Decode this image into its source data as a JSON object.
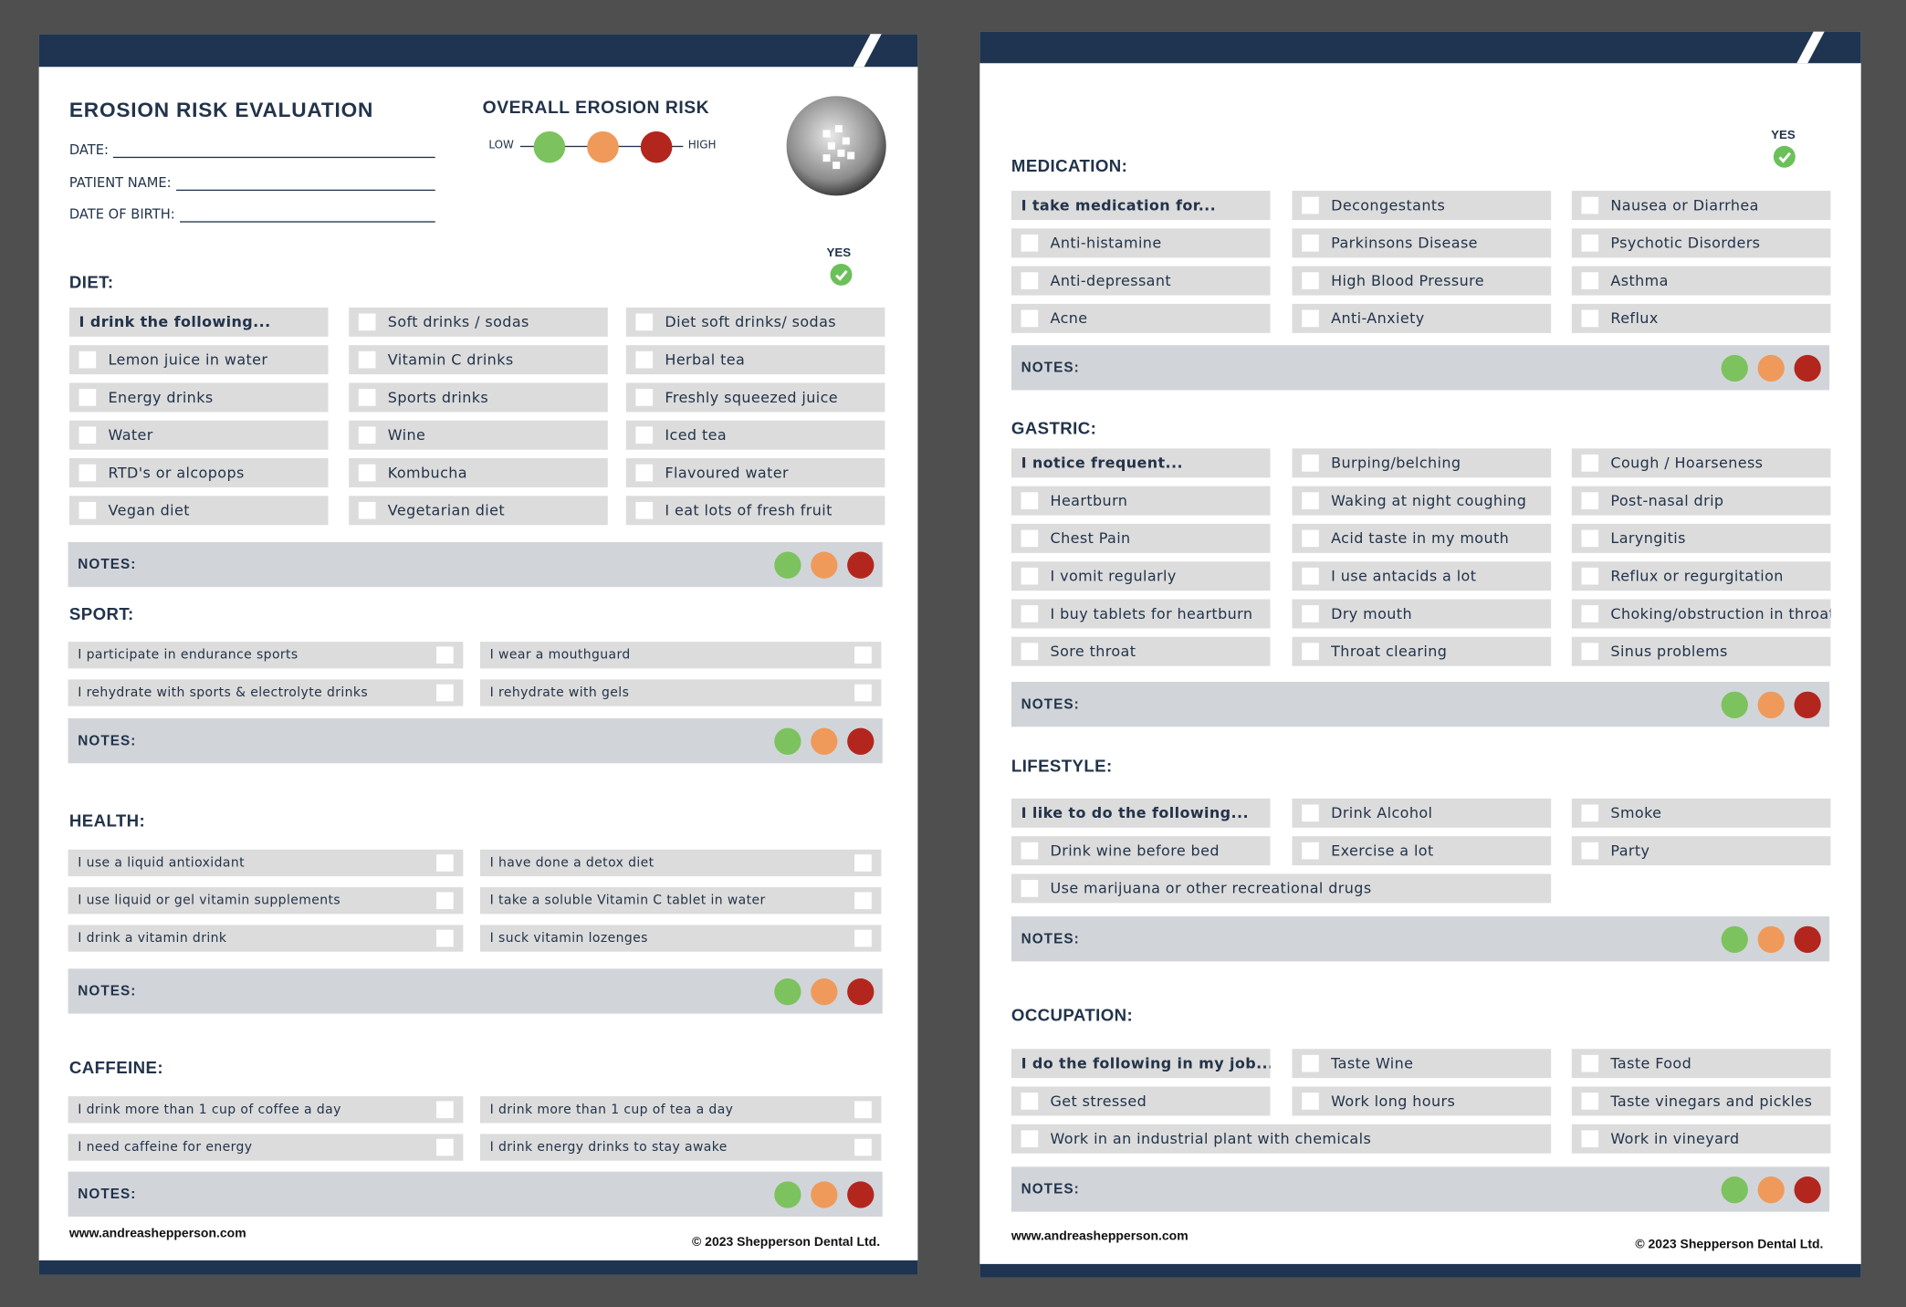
{
  "pages": [
    {
      "header": {
        "title": "EROSION RISK EVALUATION",
        "fields": [
          "DATE:",
          "PATIENT NAME:",
          "DATE OF BIRTH:"
        ],
        "risk": {
          "title": "OVERALL EROSION RISK",
          "low": "LOW",
          "high": "HIGH"
        }
      },
      "yes": "YES",
      "sections": [
        {
          "title": "DIET:",
          "grid": [
            [
              "I drink the following...",
              "Soft drinks / sodas",
              "Diet soft drinks/ sodas"
            ],
            [
              "Lemon juice in water",
              "Vitamin C drinks",
              "Herbal tea"
            ],
            [
              "Energy drinks",
              "Sports drinks",
              "Freshly squeezed juice"
            ],
            [
              "Water",
              "Wine",
              "Iced tea"
            ],
            [
              "RTD's or alcopops",
              "Kombucha",
              "Flavoured water"
            ],
            [
              "Vegan diet",
              "Vegetarian diet",
              "I eat lots of fresh fruit"
            ]
          ],
          "notes": "NOTES:"
        },
        {
          "title": "SPORT:",
          "checklist": [
            [
              "I participate in endurance sports",
              "I wear a mouthguard"
            ],
            [
              "I rehydrate with sports & electrolyte drinks",
              "I rehydrate with gels"
            ]
          ],
          "notes": "NOTES:"
        },
        {
          "title": "HEALTH:",
          "checklist": [
            [
              "I use a liquid antioxidant",
              "I have done a detox diet"
            ],
            [
              "I use liquid or gel vitamin supplements",
              "I take a soluble Vitamin C tablet in water"
            ],
            [
              "I drink a vitamin drink",
              "I suck vitamin lozenges"
            ]
          ],
          "notes": "NOTES:"
        },
        {
          "title": "CAFFEINE:",
          "checklist": [
            [
              "I drink more than 1 cup of coffee a day",
              "I drink more than 1 cup of tea a day"
            ],
            [
              "I need caffeine for energy",
              "I drink energy drinks to stay awake"
            ]
          ],
          "notes": "NOTES:"
        }
      ],
      "footer": {
        "website": "www.andreashepperson.com",
        "copyright": "© 2023 Shepperson Dental Ltd."
      }
    },
    {
      "yes": "YES",
      "sections": [
        {
          "title": "MEDICATION:",
          "grid": [
            [
              "I take medication for...",
              "Decongestants",
              "Nausea or Diarrhea"
            ],
            [
              "Anti-histamine",
              "Parkinsons Disease",
              "Psychotic Disorders"
            ],
            [
              "Anti-depressant",
              "High Blood Pressure",
              "Asthma"
            ],
            [
              "Acne",
              "Anti-Anxiety",
              "Reflux"
            ]
          ],
          "notes": "NOTES:"
        },
        {
          "title": "GASTRIC:",
          "grid": [
            [
              "I notice frequent...",
              "Burping/belching",
              "Cough / Hoarseness"
            ],
            [
              "Heartburn",
              "Waking at night coughing",
              "Post-nasal drip"
            ],
            [
              "Chest Pain",
              "Acid taste in my mouth",
              "Laryngitis"
            ],
            [
              "I vomit regularly",
              "I use antacids a lot",
              "Reflux or regurgitation"
            ],
            [
              "I buy tablets for heartburn",
              "Dry mouth",
              "Choking/obstruction in throat"
            ],
            [
              "Sore throat",
              "Throat clearing",
              "Sinus problems"
            ]
          ],
          "notes": "NOTES:"
        },
        {
          "title": "LIFESTYLE:",
          "grid": [
            [
              "I like to do the following...",
              "Drink Alcohol",
              "Smoke"
            ],
            [
              "Drink wine before bed",
              "Exercise a lot",
              "Party"
            ],
            [
              "Use marijuana or other recreational drugs"
            ]
          ],
          "notes": "NOTES:"
        },
        {
          "title": "OCCUPATION:",
          "grid": [
            [
              "I do the following in my job...",
              "Taste Wine",
              "Taste Food"
            ],
            [
              "Get stressed",
              "Work long hours",
              "Taste vinegars and pickles"
            ],
            [
              "Work in an industrial plant with chemicals",
              "Work in vineyard"
            ]
          ],
          "notes": "NOTES:"
        }
      ],
      "footer": {
        "website": "www.andreashepperson.com",
        "copyright": "© 2023 Shepperson Dental Ltd."
      }
    }
  ]
}
